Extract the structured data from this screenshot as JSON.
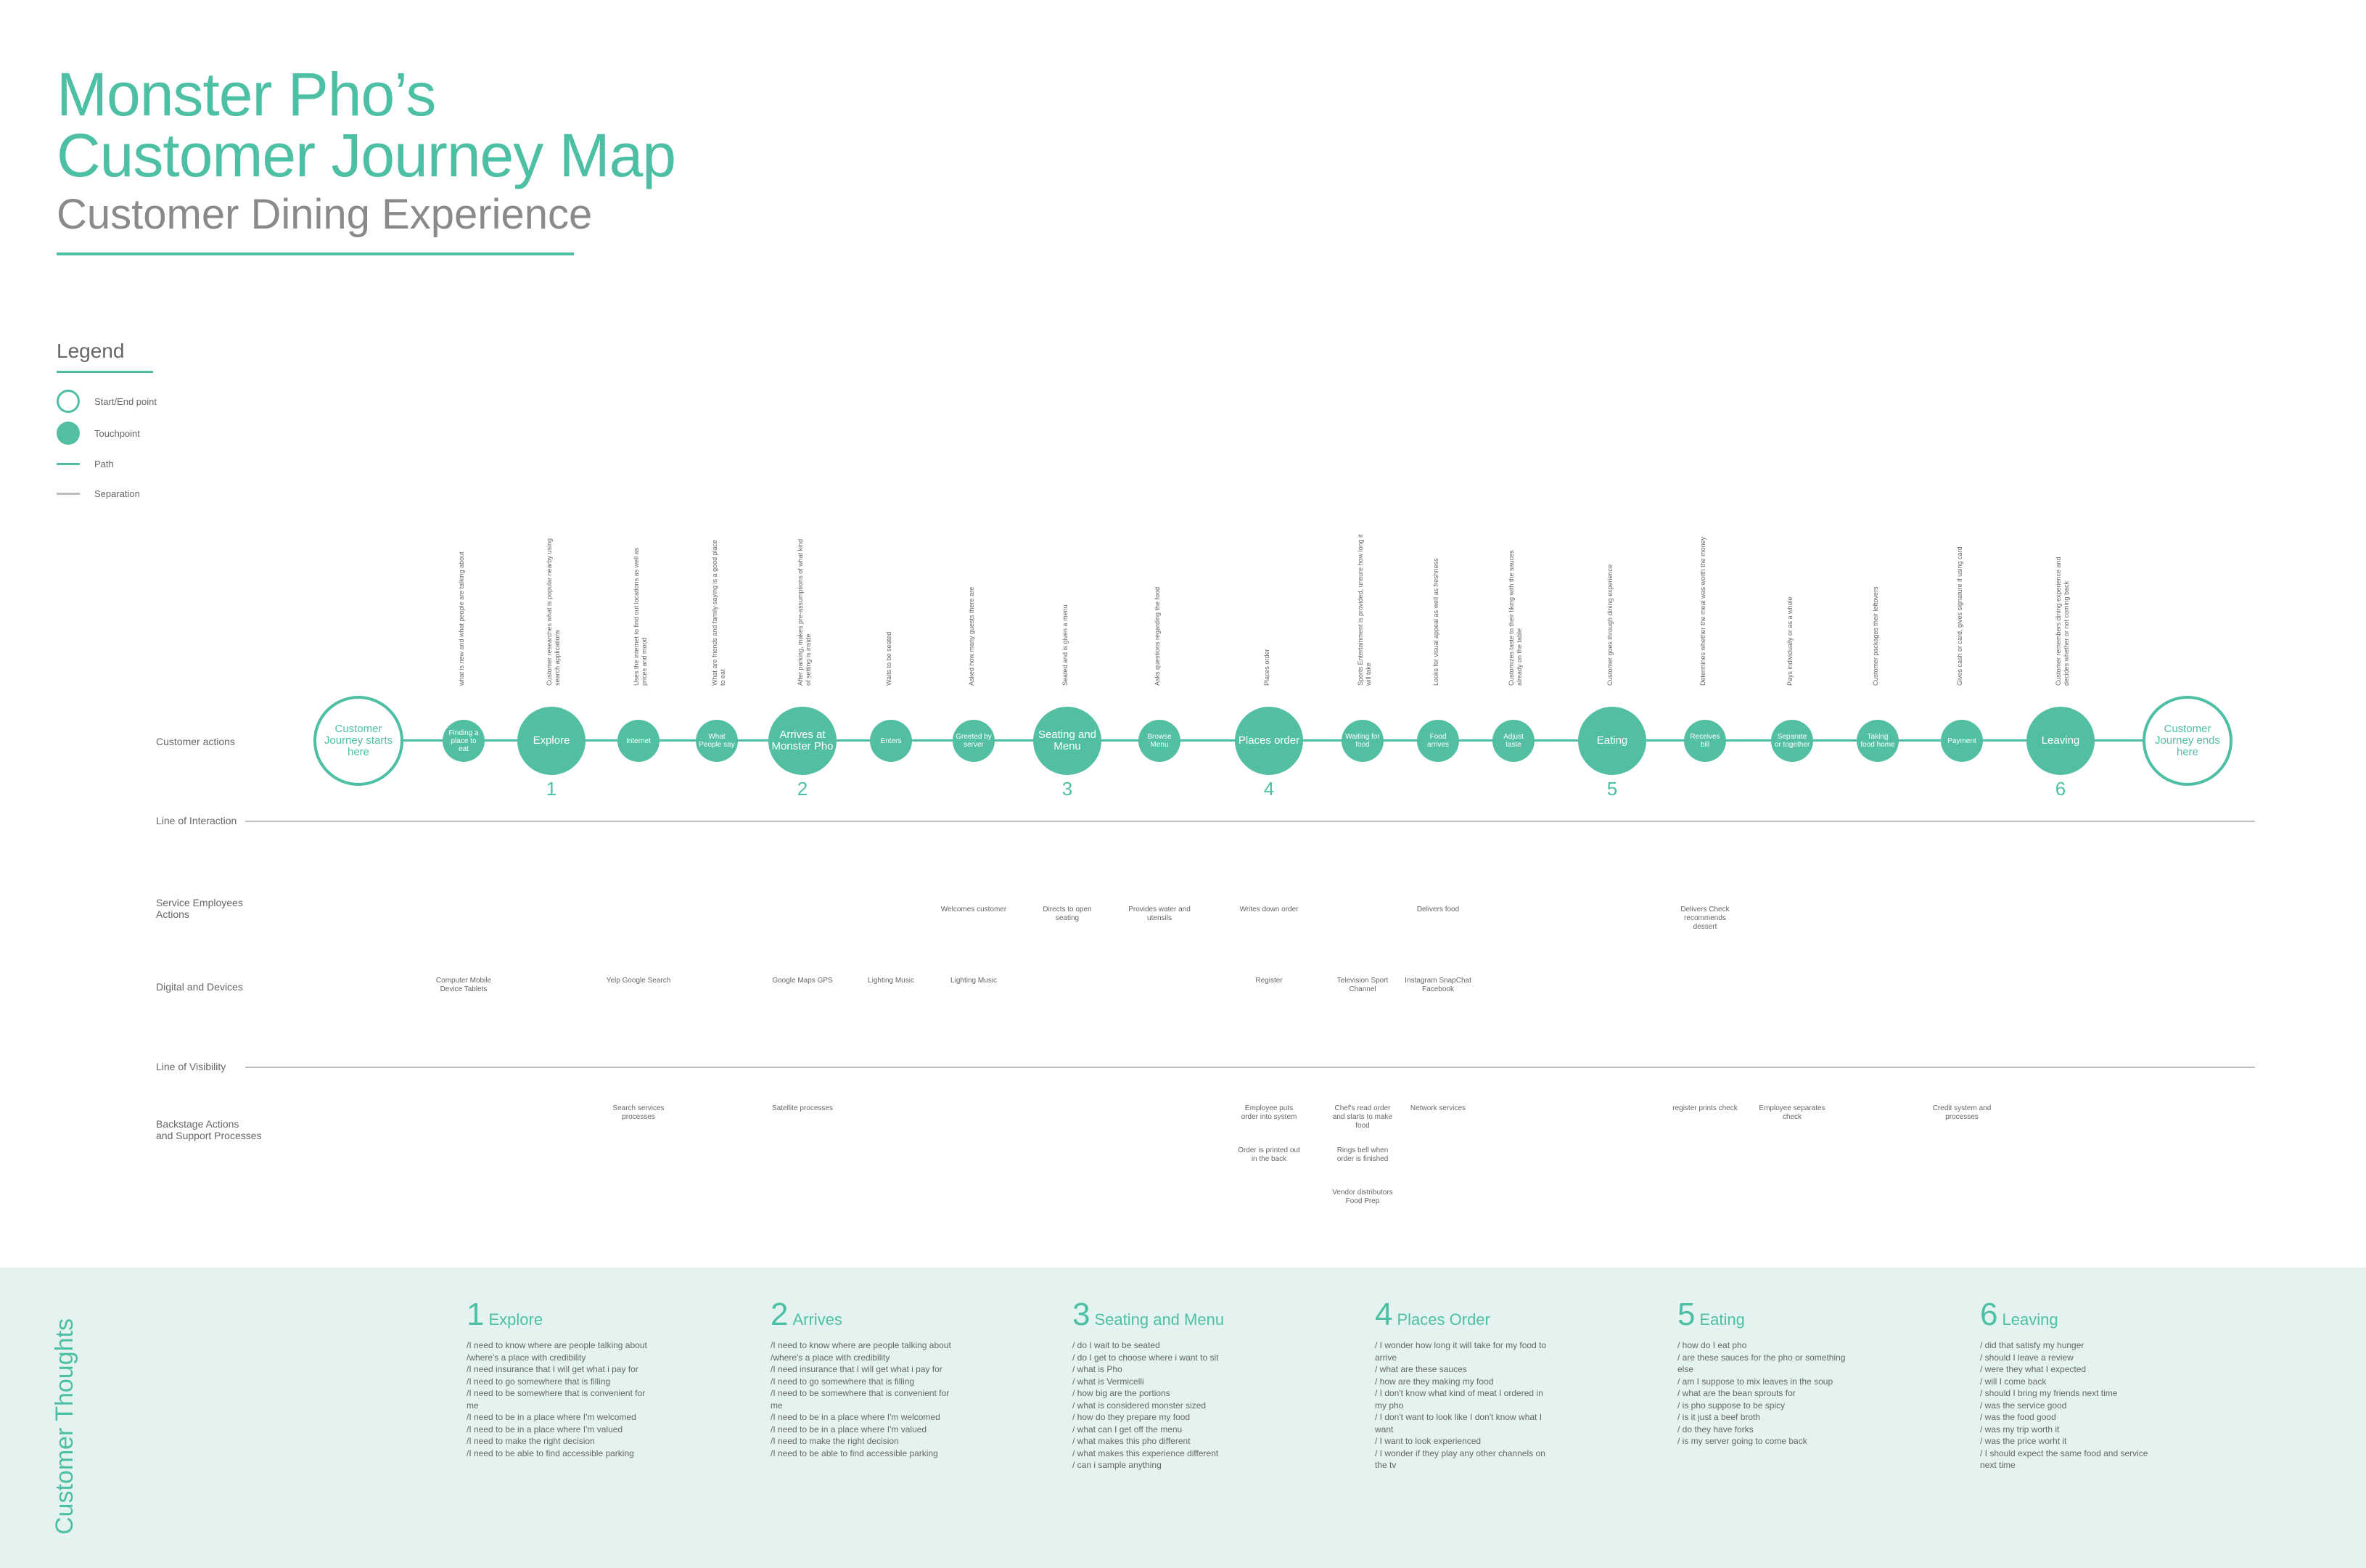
{
  "title": {
    "line1": "Monster Pho’s",
    "line2": "Customer Journey Map",
    "subtitle": "Customer Dining Experience"
  },
  "legend": {
    "title": "Legend",
    "items": [
      {
        "label": "Start/End point"
      },
      {
        "label": "Touchpoint"
      },
      {
        "label": "Path"
      },
      {
        "label": "Separation"
      }
    ]
  },
  "colors": {
    "accent": "#4dbfa4",
    "band": "#e4f3ef",
    "separator": "#bdbdbd"
  },
  "rows": {
    "customer_actions": "Customer actions",
    "line_of_interaction": "Line of Interaction",
    "service_employees": [
      "Service Employees",
      "Actions"
    ],
    "digital_devices": "Digital and Devices",
    "line_of_visibility": "Line of Visibility",
    "backstage": [
      "Backstage Actions",
      "and Support Processes"
    ]
  },
  "nodes": [
    {
      "id": "start",
      "label": "Customer Journey starts here",
      "kind": "end"
    },
    {
      "id": "n1",
      "label": "Finding a place to eat",
      "kind": "sm",
      "note": "what is new and what people are talking about"
    },
    {
      "id": "n2",
      "label": "Explore",
      "kind": "lg",
      "stage": "1",
      "note": "Customer researches what is popular nearby using search applications"
    },
    {
      "id": "n3",
      "label": "Internet",
      "kind": "sm",
      "note": "Uses the internet to find out locations as well as prices and mood"
    },
    {
      "id": "n4",
      "label": "What People say",
      "kind": "sm",
      "note": "What are friends and family saying is a good place to eat"
    },
    {
      "id": "n5",
      "label": "Arrives at Monster Pho",
      "kind": "lg",
      "stage": "2",
      "note": "After parking, makes pre-assumptions of what kind of setting is inside"
    },
    {
      "id": "n6",
      "label": "Enters",
      "kind": "sm",
      "note": "Waits to be seated"
    },
    {
      "id": "n7",
      "label": "Greeted by server",
      "kind": "sm",
      "note": "Asked how many guests there are"
    },
    {
      "id": "n8",
      "label": "Seating and Menu",
      "kind": "lg",
      "stage": "3",
      "note": "Seated and is given a menu"
    },
    {
      "id": "n9",
      "label": "Browse Menu",
      "kind": "sm",
      "note": "Asks questions regarding the food"
    },
    {
      "id": "n10",
      "label": "Places order",
      "kind": "lg",
      "stage": "4",
      "note": "Places order"
    },
    {
      "id": "n11",
      "label": "Waiting for food",
      "kind": "sm",
      "note": "Sports Entertainment is provided, unsure how long it will take"
    },
    {
      "id": "n12",
      "label": "Food arrives",
      "kind": "sm",
      "note": "Looks for visual appeal as well as freshness"
    },
    {
      "id": "n13",
      "label": "Adjust taste",
      "kind": "sm",
      "note": "Customizes taste to their liking with the sauces already on the table"
    },
    {
      "id": "n14",
      "label": "Eating",
      "kind": "lg",
      "stage": "5",
      "note": "Customer goes through dining experience"
    },
    {
      "id": "n15",
      "label": "Receives bill",
      "kind": "sm",
      "note": "Determines whether the meal was worth the money"
    },
    {
      "id": "n16",
      "label": "Separate or together",
      "kind": "sm",
      "note": "Pays individually or as a whole"
    },
    {
      "id": "n17",
      "label": "Taking food home",
      "kind": "sm",
      "note": "Customer packages their leftovers"
    },
    {
      "id": "n18",
      "label": "Payment",
      "kind": "sm",
      "note": "Gives cash or card, gives signature if using card"
    },
    {
      "id": "n19",
      "label": "Leaving",
      "kind": "lg",
      "stage": "6",
      "note": "Customer remembers dining experience and decides whether or not coming back"
    },
    {
      "id": "end",
      "label": "Customer Journey ends here",
      "kind": "end"
    }
  ],
  "service_actions": [
    {
      "at": "n7",
      "text": "Welcomes customer"
    },
    {
      "at": "n8",
      "text": "Directs to open seating"
    },
    {
      "at": "n9",
      "text": "Provides water and utensils"
    },
    {
      "at": "n10",
      "text": "Writes down order"
    },
    {
      "at": "n12",
      "text": "Delivers food"
    },
    {
      "at": "n15",
      "text": "Delivers Check recommends dessert"
    }
  ],
  "digital": [
    {
      "at": "n1",
      "text": "Computer Mobile Device Tablets"
    },
    {
      "at": "n3",
      "text": "Yelp Google Search"
    },
    {
      "at": "n5",
      "text": "Google Maps GPS"
    },
    {
      "at": "n6",
      "text": "Lighting Music"
    },
    {
      "at": "n7",
      "text": "Lighting Music"
    },
    {
      "at": "n10",
      "text": "Register"
    },
    {
      "at": "n11",
      "text": "Television Sport Channel"
    },
    {
      "at": "n12",
      "text": "Instagram SnapChat Facebook"
    }
  ],
  "backstage": [
    {
      "at": "n3",
      "text": "Search services processes"
    },
    {
      "at": "n5",
      "text": "Satellite processes"
    },
    {
      "at": "n10",
      "text": "Employee puts order into system"
    },
    {
      "at": "n10",
      "text": "Order is printed out in the back"
    },
    {
      "at": "n11",
      "text": "Chef's read order and starts to make food"
    },
    {
      "at": "n11",
      "text": "Rings bell when order is finished"
    },
    {
      "at": "n11",
      "text": "Vendor distributors Food Prep"
    },
    {
      "at": "n12",
      "text": "Network services"
    },
    {
      "at": "n15",
      "text": "register prints check"
    },
    {
      "at": "n16",
      "text": "Employee separates check"
    },
    {
      "at": "n18",
      "text": "Credit system and processes"
    }
  ],
  "thoughts": {
    "title": "Customer Thoughts",
    "columns": [
      {
        "num": "1",
        "title": "Explore",
        "lines": [
          "/I need to know where are people talking about",
          "/where's a place with credibility",
          "/I need insurance that I will get what i pay for",
          "/I need to go somewhere that is filling",
          "/I need to be somewhere that is convenient for me",
          "/I need to be in a place where I'm welcomed",
          "/I need to be in a place where I'm valued",
          "/I need to make the right decision",
          "/I need to be able to find accessible parking"
        ]
      },
      {
        "num": "2",
        "title": "Arrives",
        "lines": [
          "/I need to know where are people talking about",
          "/where's a place with credibility",
          "/I need insurance that I will get what i pay for",
          "/I need to go somewhere that is filling",
          "/I need to be somewhere that is convenient for me",
          "/I need to be in a place where I'm welcomed",
          "/I need to be in a place where I'm valued",
          "/I need to make the right decision",
          "/I need to be able to find accessible parking"
        ]
      },
      {
        "num": "3",
        "title": "Seating and Menu",
        "lines": [
          "/ do I wait to be seated",
          "/ do I get to choose where i want to sit",
          "/ what is Pho",
          "/ what is Vermicelli",
          "/ how big are the portions",
          "/ what is considered monster sized",
          "/ how do they prepare my food",
          "/ what can I get off the menu",
          "/ what makes this pho different",
          "/ what makes this experience different",
          "/ can i sample anything"
        ]
      },
      {
        "num": "4",
        "title": "Places Order",
        "lines": [
          "/ I wonder how long it will take for my food to arrive",
          "/ what are these sauces",
          "/ how are they making my food",
          "/ I don't know what kind of meat I ordered in my pho",
          "/ I don't want to look like I don't know what I want",
          "/ I want to look experienced",
          "/ I wonder if they play any other channels on the tv"
        ]
      },
      {
        "num": "5",
        "title": "Eating",
        "lines": [
          "/ how do I eat pho",
          "/ are these sauces for the pho or something else",
          "/ am I suppose to mix leaves in the soup",
          "/ what are the bean sprouts for",
          "/ is pho suppose to be spicy",
          "/ is it just a beef broth",
          "/ do they have forks",
          "/ is my server going to come back"
        ]
      },
      {
        "num": "6",
        "title": "Leaving",
        "lines": [
          "/ did that satisfy my hunger",
          "/ should I leave a review",
          "/ were they what I expected",
          "/ will I come back",
          "/ should I bring my friends next time",
          "/ was the service good",
          "/ was the food good",
          "/ was my trip worth it",
          "/ was the price worht it",
          "/ I should expect the same food and service next time"
        ]
      }
    ]
  }
}
